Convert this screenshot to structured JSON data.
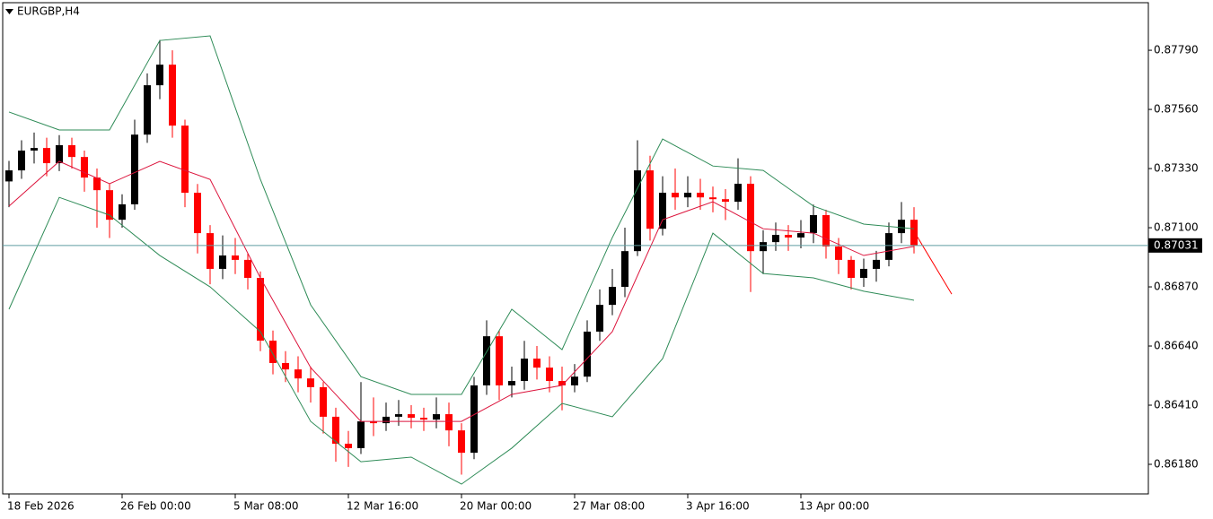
{
  "chart_data": {
    "type": "candlestick",
    "title": "EURGBP,H4",
    "categories": [
      "18 Feb 2026",
      null,
      null,
      null,
      null,
      null,
      null,
      null,
      null,
      "26 Feb 00:00",
      null,
      null,
      null,
      null,
      null,
      null,
      null,
      null,
      "5 Mar 08:00",
      null,
      null,
      null,
      null,
      null,
      null,
      null,
      null,
      "12 Mar 16:00",
      null,
      null,
      null,
      null,
      null,
      null,
      null,
      null,
      "20 Mar 00:00",
      null,
      null,
      null,
      null,
      null,
      null,
      null,
      null,
      "27 Mar 08:00",
      null,
      null,
      null,
      null,
      null,
      null,
      null,
      null,
      "3 Apr 16:00",
      null,
      null,
      null,
      null,
      null,
      null,
      null,
      null,
      "13 Apr 00:00",
      null,
      null,
      null,
      null,
      null,
      null,
      null,
      null,
      null
    ],
    "open": [
      0.8728,
      0.87323,
      0.874,
      0.8741,
      0.87351,
      0.87421,
      0.87375,
      0.87295,
      0.87246,
      0.87131,
      0.87191,
      0.87462,
      0.87654,
      0.87734,
      0.87497,
      0.87236,
      0.87079,
      0.8694,
      0.86992,
      0.86975,
      0.86905,
      0.86661,
      0.86574,
      0.86549,
      0.86514,
      0.8648,
      0.86365,
      0.8626,
      0.86243,
      0.86347,
      0.8634,
      0.86365,
      0.86375,
      0.86361,
      0.86354,
      0.86375,
      0.86312,
      0.86225,
      0.86487,
      0.86678,
      0.86487,
      0.86504,
      0.86591,
      0.86556,
      0.86504,
      0.86487,
      0.86521,
      0.86696,
      0.868,
      0.8687,
      0.87009,
      0.87323,
      0.87096,
      0.87236,
      0.87218,
      0.87236,
      0.87218,
      0.87211,
      0.87201,
      0.87271,
      0.87009,
      0.87044,
      0.87072,
      0.87062,
      0.87079,
      0.87149,
      0.87027,
      0.86975,
      0.86905,
      0.8694,
      0.86975,
      0.87079,
      0.87131
    ],
    "high": [
      0.8736,
      0.8744,
      0.8747,
      0.8745,
      0.8746,
      0.8745,
      0.874,
      0.8733,
      0.8727,
      0.8723,
      0.8752,
      0.877,
      0.8783,
      0.8779,
      0.8752,
      0.8727,
      0.8711,
      0.8707,
      0.8706,
      0.87,
      0.8693,
      0.867,
      0.8662,
      0.866,
      0.8656,
      0.865,
      0.864,
      0.8631,
      0.865,
      0.8644,
      0.8642,
      0.8643,
      0.8641,
      0.864,
      0.8644,
      0.8642,
      0.8634,
      0.8652,
      0.8674,
      0.867,
      0.8656,
      0.8666,
      0.8664,
      0.866,
      0.8656,
      0.8657,
      0.8674,
      0.8686,
      0.8694,
      0.871,
      0.8744,
      0.8738,
      0.873,
      0.8733,
      0.873,
      0.8729,
      0.8726,
      0.8725,
      0.8737,
      0.873,
      0.8709,
      0.8712,
      0.8711,
      0.8713,
      0.8719,
      0.8717,
      0.8706,
      0.8699,
      0.8698,
      0.8701,
      0.8712,
      0.872,
      0.8718
    ],
    "low": [
      0.8718,
      0.8729,
      0.8735,
      0.873,
      0.8732,
      0.8733,
      0.8724,
      0.871,
      0.8706,
      0.871,
      0.8717,
      0.8743,
      0.876,
      0.8745,
      0.8718,
      0.87,
      0.8688,
      0.869,
      0.8692,
      0.8686,
      0.8662,
      0.8653,
      0.865,
      0.8646,
      0.8642,
      0.863,
      0.8619,
      0.8617,
      0.8622,
      0.8629,
      0.8631,
      0.8633,
      0.8632,
      0.8631,
      0.8632,
      0.8625,
      0.8614,
      0.862,
      0.8645,
      0.8643,
      0.8644,
      0.8647,
      0.8651,
      0.8646,
      0.8639,
      0.8646,
      0.865,
      0.8666,
      0.8676,
      0.8683,
      0.8699,
      0.8705,
      0.8707,
      0.8717,
      0.8718,
      0.8717,
      0.8716,
      0.8713,
      0.8717,
      0.8685,
      0.8692,
      0.8701,
      0.8701,
      0.8702,
      0.8704,
      0.8698,
      0.8692,
      0.8686,
      0.8687,
      0.8689,
      0.8695,
      0.8704,
      0.87
    ],
    "close": [
      0.87323,
      0.874,
      0.8741,
      0.87351,
      0.87421,
      0.87375,
      0.87295,
      0.87246,
      0.87131,
      0.87191,
      0.87462,
      0.87654,
      0.87734,
      0.87497,
      0.87236,
      0.87079,
      0.8694,
      0.86992,
      0.86975,
      0.86905,
      0.86661,
      0.86574,
      0.86549,
      0.86514,
      0.8648,
      0.86365,
      0.8626,
      0.86243,
      0.86347,
      0.8634,
      0.86365,
      0.86375,
      0.86361,
      0.86354,
      0.86375,
      0.86312,
      0.86225,
      0.86487,
      0.86678,
      0.86487,
      0.86504,
      0.86591,
      0.86556,
      0.86504,
      0.86487,
      0.86521,
      0.86696,
      0.868,
      0.8687,
      0.87009,
      0.87323,
      0.87096,
      0.87236,
      0.87218,
      0.87236,
      0.87218,
      0.87211,
      0.87201,
      0.87271,
      0.87009,
      0.87044,
      0.87072,
      0.87062,
      0.87079,
      0.87149,
      0.87027,
      0.86975,
      0.86905,
      0.8694,
      0.86975,
      0.87079,
      0.87131,
      0.87031
    ],
    "up_color": "#000000",
    "down_color": "#ff0000",
    "overlays": [
      {
        "color": "#2e8b57",
        "x": [
          0,
          4,
          8,
          12,
          16,
          20,
          24,
          28,
          32,
          36,
          40,
          44,
          48,
          52,
          56,
          60,
          64,
          68,
          72
        ],
        "values": [
          0.8755,
          0.8748,
          0.8748,
          0.87828,
          0.87846,
          0.87288,
          0.868,
          0.86521,
          0.86452,
          0.86452,
          0.86783,
          0.86626,
          0.87062,
          0.87445,
          0.8734,
          0.87323,
          0.87184,
          0.87114,
          0.87096
        ]
      },
      {
        "color": "#2e8b57",
        "x": [
          0,
          4,
          8,
          12,
          16,
          20,
          24,
          28,
          32,
          36,
          40,
          44,
          48,
          52,
          56,
          60,
          64,
          68,
          72
        ],
        "values": [
          0.86783,
          0.87218,
          0.87149,
          0.86992,
          0.8687,
          0.86696,
          0.86347,
          0.8619,
          0.86208,
          0.86103,
          0.86243,
          0.86417,
          0.86365,
          0.86591,
          0.87079,
          0.86922,
          0.86905,
          0.86853,
          0.86818
        ]
      },
      {
        "color": "#dc143c",
        "x": [
          0,
          4,
          8,
          12,
          16,
          20,
          24,
          28,
          32,
          36,
          40,
          44,
          48,
          52,
          56,
          60,
          64,
          68,
          72
        ],
        "values": [
          0.87184,
          0.87358,
          0.87271,
          0.87358,
          0.87288,
          0.86905,
          0.86556,
          0.86347,
          0.86347,
          0.86347,
          0.86452,
          0.86487,
          0.86696,
          0.87131,
          0.87201,
          0.87096,
          0.87079,
          0.86992,
          0.87027
        ]
      },
      {
        "color": "#ff0000",
        "x": [
          72,
          75
        ],
        "values": [
          0.87086,
          0.86842
        ]
      }
    ],
    "current_price": {
      "value": 0.87031,
      "label": "0.87031"
    },
    "current_color": "#5f9ea0",
    "ylim": [
      0.86065,
      0.87975
    ],
    "yticks": [
      {
        "value": 0.8779,
        "label": "0.87790"
      },
      {
        "value": 0.8756,
        "label": "0.87560"
      },
      {
        "value": 0.8733,
        "label": "0.87330"
      },
      {
        "value": 0.871,
        "label": "0.87100"
      },
      {
        "value": 0.8687,
        "label": "0.86870"
      },
      {
        "value": 0.8664,
        "label": "0.86640"
      },
      {
        "value": 0.8641,
        "label": "0.86410"
      },
      {
        "value": 0.8618,
        "label": "0.86180"
      }
    ]
  }
}
